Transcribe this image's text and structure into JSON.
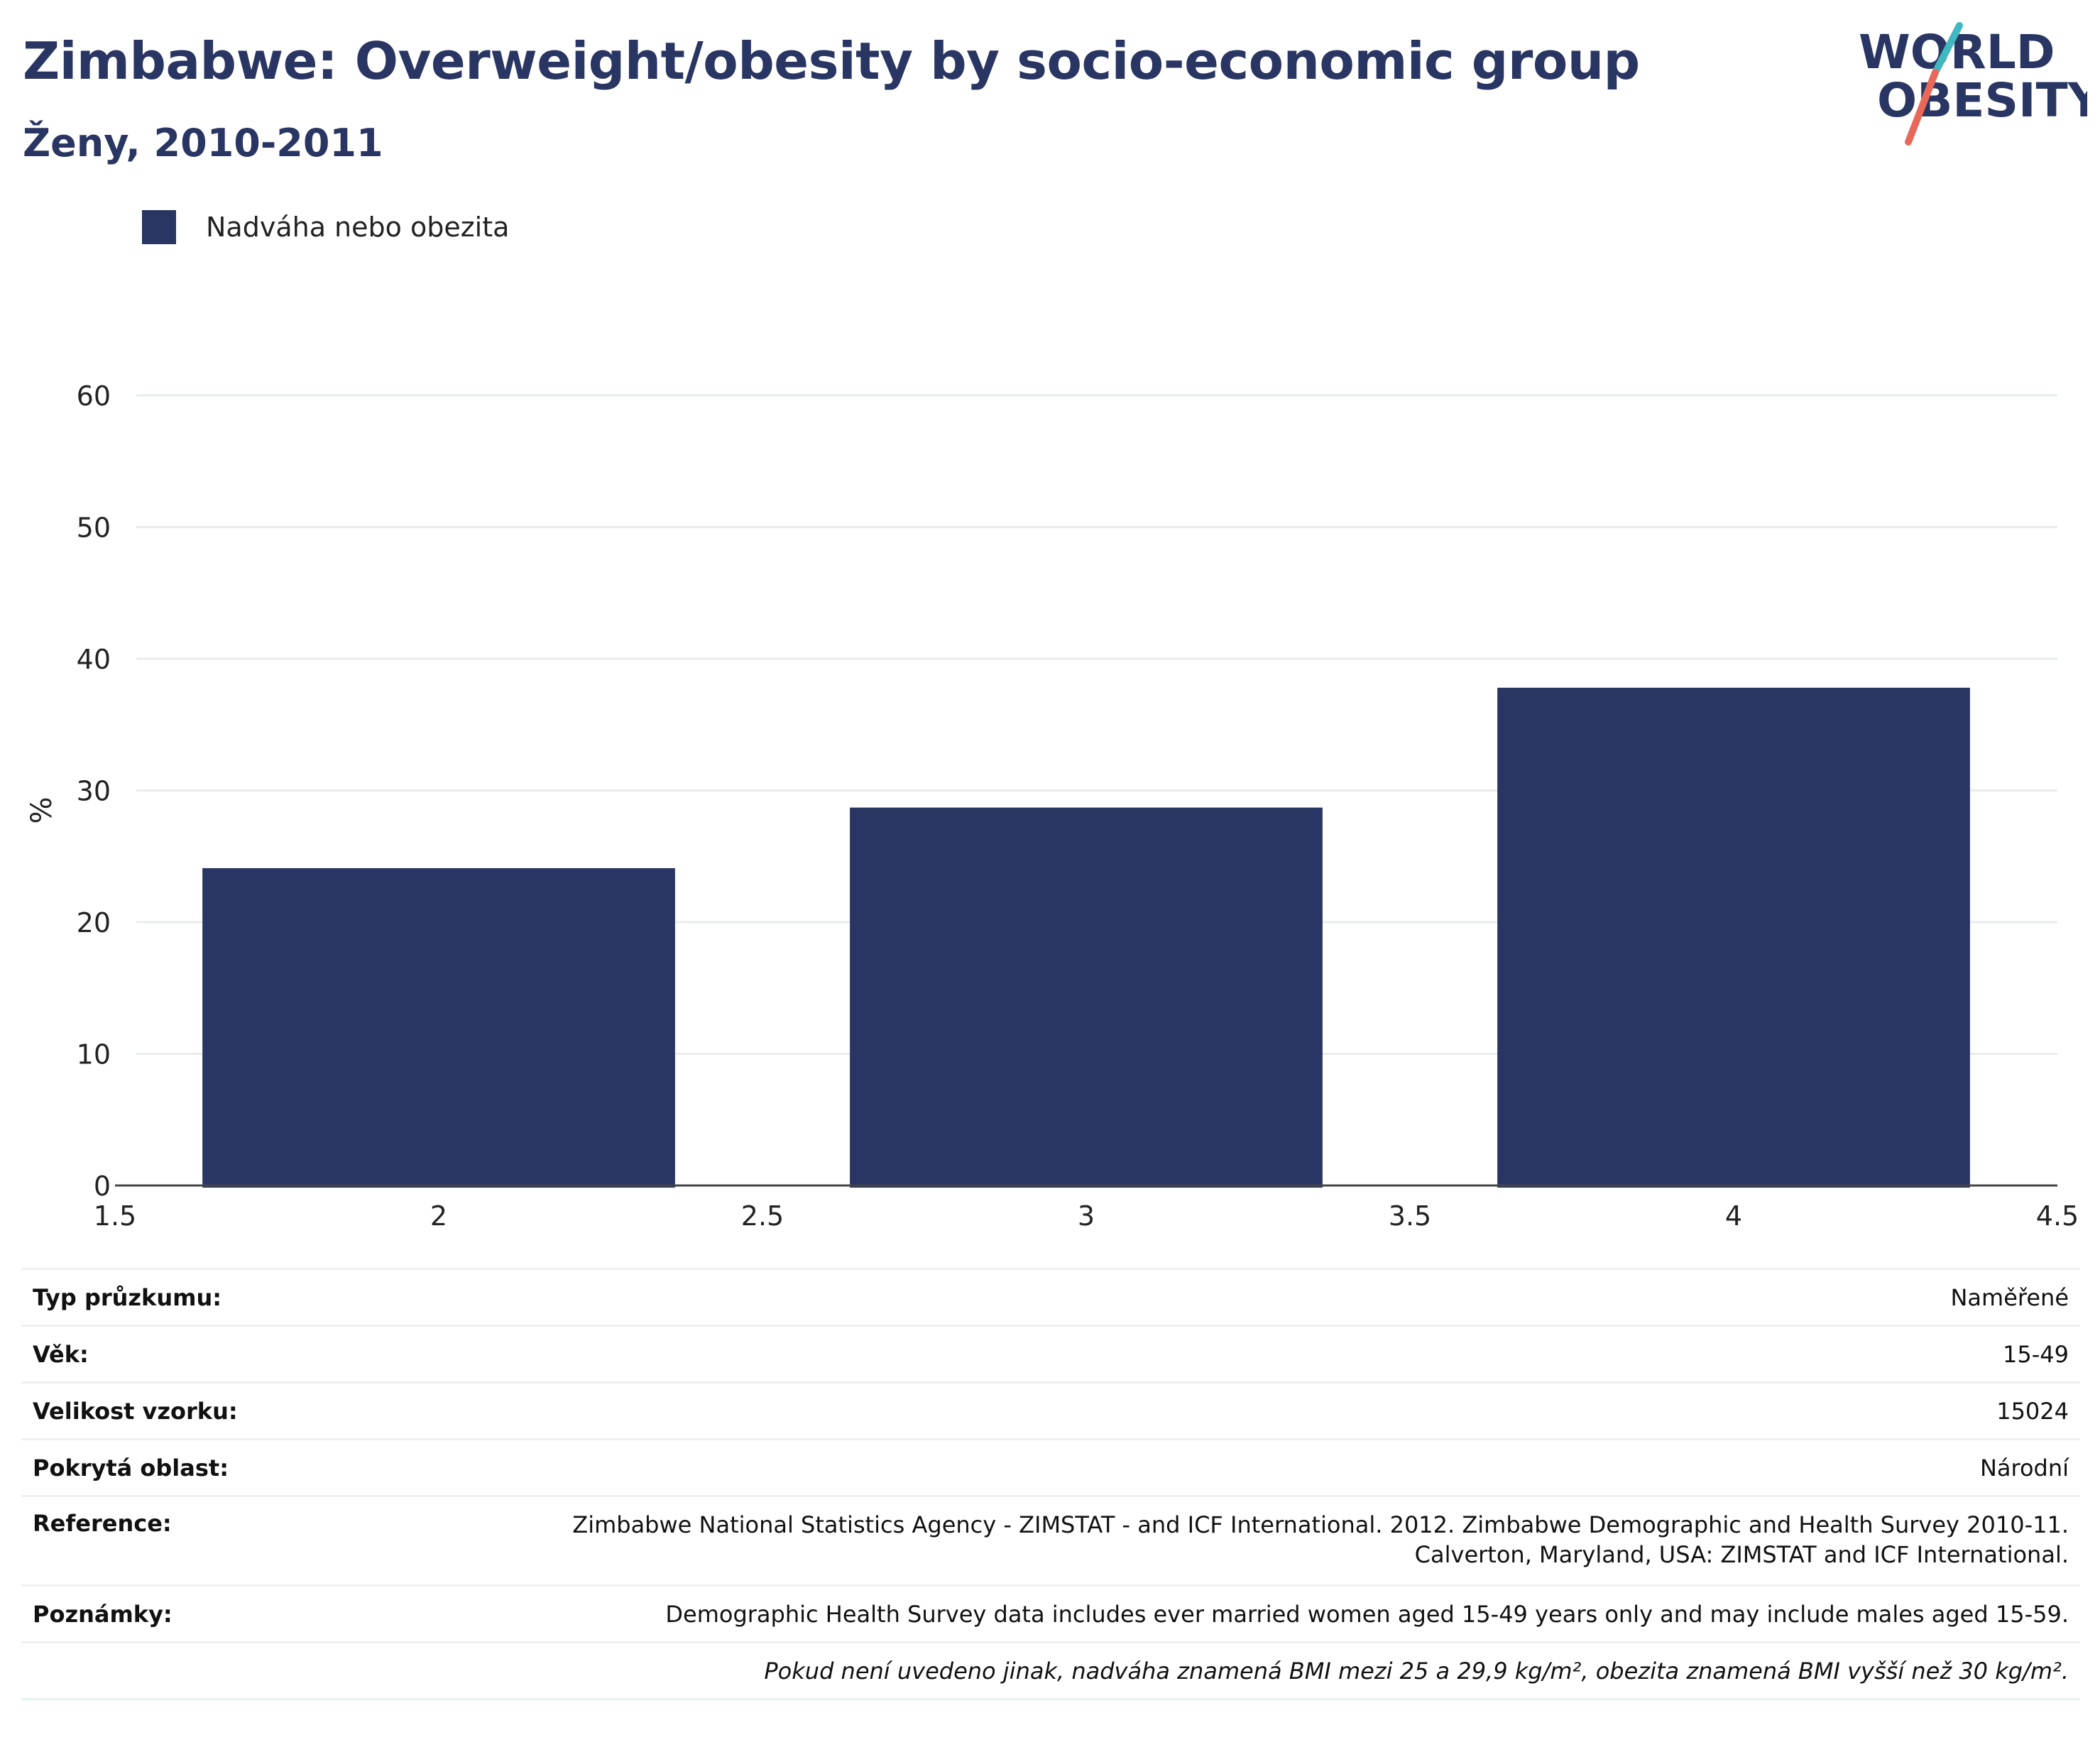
{
  "header": {
    "title": "Zimbabwe: Overweight/obesity by socio-economic group",
    "subtitle": "Ženy, 2010-2011"
  },
  "logo": {
    "line1": "WORLD",
    "line2": "OBESITY",
    "colors": {
      "text": "#293562",
      "slash_top": "#3fb8c0",
      "slash_bottom": "#e8695a"
    }
  },
  "legend": {
    "label": "Nadváha nebo obezita",
    "color": "#293562"
  },
  "chart_data": {
    "type": "bar",
    "x": [
      2,
      3,
      4
    ],
    "series": [
      {
        "name": "Nadváha nebo obezita",
        "values": [
          24.1,
          28.7,
          37.8
        ],
        "color": "#293562"
      }
    ],
    "xlim": [
      1.5,
      4.5
    ],
    "xticks": [
      "1.5",
      "2",
      "2.5",
      "3",
      "3.5",
      "4",
      "4.5"
    ],
    "ylim": [
      0,
      60
    ],
    "yticks": [
      "0",
      "10",
      "20",
      "30",
      "40",
      "50",
      "60"
    ],
    "ylabel": "%",
    "xlabel": "",
    "grid": true,
    "legend_position": "top-left"
  },
  "info": {
    "rows": [
      {
        "label": "Typ průzkumu:",
        "value": "Naměřené"
      },
      {
        "label": "Věk:",
        "value": "15-49"
      },
      {
        "label": "Velikost vzorku:",
        "value": "15024"
      },
      {
        "label": "Pokrytá oblast:",
        "value": "Národní"
      }
    ],
    "reference": {
      "label": "Reference:",
      "line1": "Zimbabwe National Statistics Agency - ZIMSTAT - and ICF International. 2012. Zimbabwe Demographic and Health Survey 2010-11.",
      "line2": "Calverton, Maryland, USA: ZIMSTAT and ICF International."
    },
    "notes": {
      "label": "Poznámky:",
      "value": "Demographic Health Survey data includes ever married women aged 15-49 years only and may include males aged 15-59."
    },
    "footnote": "Pokud není uvedeno jinak, nadváha znamená BMI mezi 25 a 29,9 kg/m², obezita znamená BMI vyšší než 30 kg/m²."
  }
}
